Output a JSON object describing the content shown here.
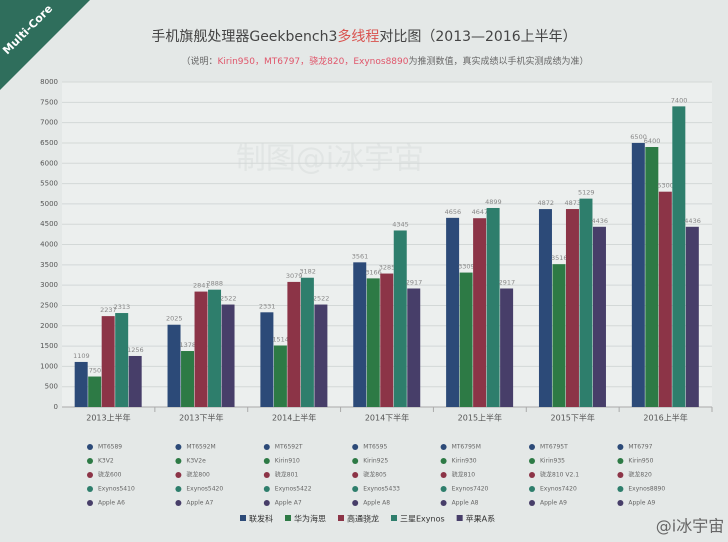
{
  "chart_data": {
    "type": "bar",
    "badge": "Multi-Core",
    "title_parts": [
      {
        "text": "手机旗舰处理器Geekbench3"
      },
      {
        "text": "多线程",
        "color": "#d9534f"
      },
      {
        "text": "对比图（2013—2016上半年）"
      }
    ],
    "subtitle_parts": [
      {
        "text": "（说明："
      },
      {
        "text": "Kirin950，MT6797，骁龙820，Exynos8890",
        "color": "#e0566b"
      },
      {
        "text": "为推测数值，真实成绩以手机实测成绩为准）"
      }
    ],
    "watermark": "制图@i冰宇宙",
    "credit": "@i冰宇宙",
    "categories": [
      "2013上半年",
      "2013下半年",
      "2014上半年",
      "2014下半年",
      "2015上半年",
      "2015下半年",
      "2016上半年"
    ],
    "series": [
      {
        "name": "联发科",
        "color": "#2c4a78",
        "values": [
          1109,
          2025,
          2331,
          3561,
          4656,
          4872,
          6500
        ],
        "chips": [
          "MT6589",
          "MT6592M",
          "MT6592T",
          "MT6595",
          "MT6795M",
          "MT6795T",
          "MT6797"
        ]
      },
      {
        "name": "华为海思",
        "color": "#2d7a45",
        "values": [
          750,
          1378,
          1514,
          3166,
          3309,
          3516,
          6400
        ],
        "chips": [
          "K3V2",
          "K3V2e",
          "Kirin910",
          "Kirin925",
          "Kirin930",
          "Kirin935",
          "Kirin950"
        ]
      },
      {
        "name": "高通骁龙",
        "color": "#8c3447",
        "values": [
          2237,
          2841,
          3079,
          3285,
          4647,
          4873,
          5300
        ],
        "chips": [
          "骁龙600",
          "骁龙800",
          "骁龙801",
          "骁龙805",
          "骁龙810",
          "骁龙810 V2.1",
          "骁龙820"
        ]
      },
      {
        "name": "三星Exynos",
        "color": "#2e7e6c",
        "values": [
          2313,
          2888,
          3182,
          4345,
          4899,
          5129,
          7400
        ],
        "chips": [
          "Exynos5410",
          "Exynos5420",
          "Exynos5422",
          "Exynos5433",
          "Exynos7420",
          "Exynos7420",
          "Exynos8890"
        ]
      },
      {
        "name": "苹果A系",
        "color": "#473e69",
        "values": [
          1256,
          2522,
          2522,
          2917,
          2917,
          4436,
          4436
        ],
        "chips": [
          "Apple A6",
          "Apple A7",
          "Apple A7",
          "Apple A8",
          "Apple A8",
          "Apple A9",
          "Apple A9"
        ]
      }
    ],
    "ylim": [
      0,
      8000
    ],
    "yticks": [
      0,
      500,
      1000,
      1500,
      2000,
      2500,
      3000,
      3500,
      4000,
      4500,
      5000,
      5500,
      6000,
      6500,
      7000,
      7500,
      8000
    ],
    "grid": true
  }
}
